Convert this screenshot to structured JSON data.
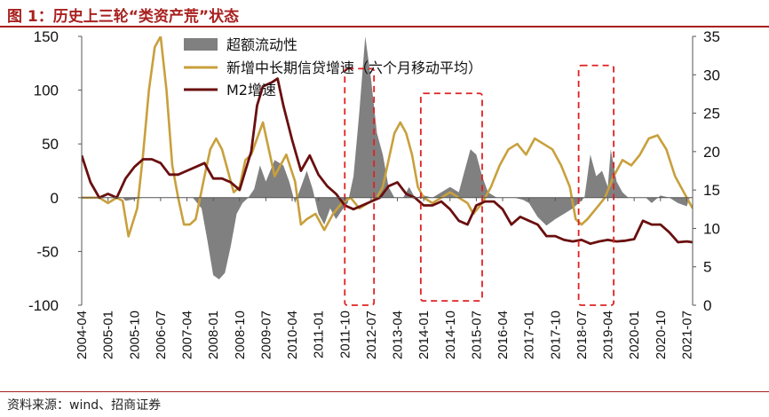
{
  "title": "图 1：历史上三轮“类资产荒”状态",
  "source": "资料来源：wind、招商证券",
  "chart_data": {
    "type": "line",
    "x_ticks": [
      "2004-04",
      "2005-01",
      "2005-10",
      "2006-07",
      "2007-04",
      "2008-01",
      "2008-10",
      "2009-07",
      "2010-04",
      "2011-01",
      "2011-10",
      "2012-07",
      "2013-04",
      "2014-01",
      "2014-10",
      "2015-07",
      "2016-04",
      "2017-01",
      "2017-10",
      "2018-07",
      "2019-04",
      "2020-01",
      "2020-10",
      "2021-07"
    ],
    "x_range": [
      "2004-04",
      "2021-09"
    ],
    "y_left": {
      "range": [
        -100,
        150
      ],
      "ticks": [
        -100,
        -50,
        0,
        50,
        100,
        150
      ]
    },
    "y_right": {
      "range": [
        0,
        35
      ],
      "ticks": [
        0,
        5,
        10,
        15,
        20,
        25,
        30,
        35
      ]
    },
    "grid": false,
    "legend_placement": "top-center",
    "series": [
      {
        "name": "超额流动性",
        "type": "area",
        "axis": "left",
        "color": "#808080",
        "points": [
          [
            "2004-04",
            0
          ],
          [
            "2005-06",
            0
          ],
          [
            "2005-07",
            -3
          ],
          [
            "2006-01",
            0
          ],
          [
            "2007-06",
            0
          ],
          [
            "2007-09",
            -10
          ],
          [
            "2007-11",
            -40
          ],
          [
            "2008-01",
            -72
          ],
          [
            "2008-03",
            -76
          ],
          [
            "2008-05",
            -70
          ],
          [
            "2008-07",
            -45
          ],
          [
            "2008-09",
            -15
          ],
          [
            "2008-11",
            -5
          ],
          [
            "2009-01",
            0
          ],
          [
            "2009-03",
            8
          ],
          [
            "2009-05",
            30
          ],
          [
            "2009-07",
            15
          ],
          [
            "2009-10",
            35
          ],
          [
            "2010-01",
            30
          ],
          [
            "2010-03",
            15
          ],
          [
            "2010-05",
            -5
          ],
          [
            "2010-07",
            10
          ],
          [
            "2010-09",
            25
          ],
          [
            "2010-11",
            8
          ],
          [
            "2011-01",
            -15
          ],
          [
            "2011-03",
            -25
          ],
          [
            "2011-05",
            -10
          ],
          [
            "2011-07",
            -20
          ],
          [
            "2011-09",
            -12
          ],
          [
            "2011-11",
            -5
          ],
          [
            "2012-01",
            20
          ],
          [
            "2012-03",
            80
          ],
          [
            "2012-05",
            150
          ],
          [
            "2012-07",
            110
          ],
          [
            "2012-09",
            60
          ],
          [
            "2012-11",
            40
          ],
          [
            "2013-01",
            10
          ],
          [
            "2013-03",
            0
          ],
          [
            "2013-06",
            0
          ],
          [
            "2013-08",
            10
          ],
          [
            "2013-10",
            0
          ],
          [
            "2014-01",
            2
          ],
          [
            "2014-04",
            0
          ],
          [
            "2014-07",
            5
          ],
          [
            "2014-10",
            10
          ],
          [
            "2015-01",
            5
          ],
          [
            "2015-03",
            25
          ],
          [
            "2015-05",
            45
          ],
          [
            "2015-07",
            40
          ],
          [
            "2015-09",
            20
          ],
          [
            "2015-11",
            5
          ],
          [
            "2016-02",
            0
          ],
          [
            "2016-08",
            0
          ],
          [
            "2016-11",
            -2
          ],
          [
            "2017-01",
            -5
          ],
          [
            "2017-04",
            -18
          ],
          [
            "2017-07",
            -26
          ],
          [
            "2017-10",
            -20
          ],
          [
            "2018-01",
            -15
          ],
          [
            "2018-04",
            -10
          ],
          [
            "2018-06",
            -5
          ],
          [
            "2018-08",
            0
          ],
          [
            "2018-10",
            40
          ],
          [
            "2018-12",
            20
          ],
          [
            "2019-02",
            25
          ],
          [
            "2019-04",
            10
          ],
          [
            "2019-05",
            45
          ],
          [
            "2019-07",
            15
          ],
          [
            "2019-09",
            5
          ],
          [
            "2019-11",
            0
          ],
          [
            "2020-02",
            0
          ],
          [
            "2020-05",
            0
          ],
          [
            "2020-07",
            -5
          ],
          [
            "2020-10",
            2
          ],
          [
            "2021-01",
            0
          ],
          [
            "2021-04",
            -5
          ],
          [
            "2021-07",
            -8
          ],
          [
            "2021-08",
            0
          ]
        ]
      },
      {
        "name": "新增中长期信贷增速（六个月移动平均）",
        "type": "line",
        "axis": "left",
        "color": "#c8a03c",
        "points": [
          [
            "2004-04",
            0
          ],
          [
            "2004-10",
            0
          ],
          [
            "2005-01",
            -5
          ],
          [
            "2005-04",
            0
          ],
          [
            "2005-06",
            -3
          ],
          [
            "2005-08",
            -36
          ],
          [
            "2005-11",
            -10
          ],
          [
            "2006-01",
            40
          ],
          [
            "2006-03",
            100
          ],
          [
            "2006-05",
            140
          ],
          [
            "2006-07",
            150
          ],
          [
            "2006-09",
            100
          ],
          [
            "2006-11",
            30
          ],
          [
            "2007-01",
            0
          ],
          [
            "2007-03",
            -25
          ],
          [
            "2007-05",
            -25
          ],
          [
            "2007-07",
            -20
          ],
          [
            "2007-10",
            20
          ],
          [
            "2007-12",
            45
          ],
          [
            "2008-02",
            55
          ],
          [
            "2008-04",
            45
          ],
          [
            "2008-06",
            25
          ],
          [
            "2008-08",
            5
          ],
          [
            "2008-10",
            10
          ],
          [
            "2008-12",
            35
          ],
          [
            "2009-02",
            40
          ],
          [
            "2009-04",
            55
          ],
          [
            "2009-06",
            70
          ],
          [
            "2009-08",
            45
          ],
          [
            "2009-10",
            20
          ],
          [
            "2009-12",
            30
          ],
          [
            "2010-02",
            40
          ],
          [
            "2010-05",
            15
          ],
          [
            "2010-07",
            -25
          ],
          [
            "2010-09",
            -20
          ],
          [
            "2010-12",
            -15
          ],
          [
            "2011-03",
            -30
          ],
          [
            "2011-06",
            -15
          ],
          [
            "2011-09",
            -5
          ],
          [
            "2011-12",
            0
          ],
          [
            "2012-03",
            -10
          ],
          [
            "2012-06",
            -5
          ],
          [
            "2012-09",
            0
          ],
          [
            "2012-11",
            10
          ],
          [
            "2013-01",
            35
          ],
          [
            "2013-03",
            60
          ],
          [
            "2013-05",
            70
          ],
          [
            "2013-07",
            60
          ],
          [
            "2013-09",
            40
          ],
          [
            "2013-11",
            10
          ],
          [
            "2014-01",
            0
          ],
          [
            "2014-04",
            -5
          ],
          [
            "2014-07",
            0
          ],
          [
            "2014-10",
            5
          ],
          [
            "2015-01",
            0
          ],
          [
            "2015-04",
            -5
          ],
          [
            "2015-06",
            -15
          ],
          [
            "2015-09",
            -5
          ],
          [
            "2015-12",
            10
          ],
          [
            "2016-03",
            30
          ],
          [
            "2016-06",
            45
          ],
          [
            "2016-09",
            50
          ],
          [
            "2016-12",
            40
          ],
          [
            "2017-03",
            55
          ],
          [
            "2017-06",
            50
          ],
          [
            "2017-09",
            45
          ],
          [
            "2017-12",
            30
          ],
          [
            "2018-03",
            10
          ],
          [
            "2018-05",
            -20
          ],
          [
            "2018-07",
            -25
          ],
          [
            "2018-09",
            -20
          ],
          [
            "2018-12",
            -10
          ],
          [
            "2019-03",
            0
          ],
          [
            "2019-06",
            20
          ],
          [
            "2019-09",
            35
          ],
          [
            "2019-12",
            30
          ],
          [
            "2020-03",
            40
          ],
          [
            "2020-06",
            55
          ],
          [
            "2020-09",
            58
          ],
          [
            "2020-12",
            45
          ],
          [
            "2021-03",
            20
          ],
          [
            "2021-06",
            5
          ],
          [
            "2021-09",
            -10
          ]
        ]
      },
      {
        "name": "M2增速",
        "type": "line",
        "axis": "right",
        "color": "#6a0f0f",
        "points": [
          [
            "2004-04",
            19.5
          ],
          [
            "2004-07",
            16
          ],
          [
            "2004-10",
            14
          ],
          [
            "2005-01",
            14.5
          ],
          [
            "2005-04",
            14
          ],
          [
            "2005-07",
            16.5
          ],
          [
            "2005-10",
            18
          ],
          [
            "2006-01",
            19
          ],
          [
            "2006-04",
            19
          ],
          [
            "2006-07",
            18.5
          ],
          [
            "2006-10",
            17
          ],
          [
            "2007-01",
            17
          ],
          [
            "2007-04",
            17.5
          ],
          [
            "2007-07",
            18
          ],
          [
            "2007-10",
            18.5
          ],
          [
            "2008-01",
            16.5
          ],
          [
            "2008-04",
            16.5
          ],
          [
            "2008-07",
            16
          ],
          [
            "2008-10",
            15
          ],
          [
            "2008-12",
            17.5
          ],
          [
            "2009-02",
            20
          ],
          [
            "2009-04",
            26
          ],
          [
            "2009-06",
            28.5
          ],
          [
            "2009-09",
            29
          ],
          [
            "2009-11",
            29.5
          ],
          [
            "2010-01",
            26
          ],
          [
            "2010-04",
            21.5
          ],
          [
            "2010-07",
            17.5
          ],
          [
            "2010-10",
            19.5
          ],
          [
            "2011-01",
            17
          ],
          [
            "2011-04",
            15.5
          ],
          [
            "2011-07",
            14.5
          ],
          [
            "2011-10",
            13
          ],
          [
            "2012-01",
            12.5
          ],
          [
            "2012-04",
            13
          ],
          [
            "2012-07",
            13.5
          ],
          [
            "2012-10",
            14
          ],
          [
            "2013-01",
            15.5
          ],
          [
            "2013-04",
            16
          ],
          [
            "2013-07",
            14.5
          ],
          [
            "2013-10",
            14
          ],
          [
            "2014-01",
            13
          ],
          [
            "2014-04",
            13
          ],
          [
            "2014-07",
            13.5
          ],
          [
            "2014-10",
            12.5
          ],
          [
            "2015-01",
            11
          ],
          [
            "2015-04",
            10.5
          ],
          [
            "2015-07",
            13
          ],
          [
            "2015-10",
            13.5
          ],
          [
            "2016-01",
            13.5
          ],
          [
            "2016-04",
            12.5
          ],
          [
            "2016-07",
            10.5
          ],
          [
            "2016-10",
            11.5
          ],
          [
            "2017-01",
            11
          ],
          [
            "2017-04",
            10.5
          ],
          [
            "2017-07",
            9
          ],
          [
            "2017-10",
            9
          ],
          [
            "2018-01",
            8.5
          ],
          [
            "2018-04",
            8.3
          ],
          [
            "2018-07",
            8.5
          ],
          [
            "2018-10",
            8
          ],
          [
            "2019-01",
            8.3
          ],
          [
            "2019-04",
            8.5
          ],
          [
            "2019-07",
            8.3
          ],
          [
            "2019-10",
            8.4
          ],
          [
            "2020-01",
            8.6
          ],
          [
            "2020-04",
            11
          ],
          [
            "2020-07",
            10.5
          ],
          [
            "2020-10",
            10.5
          ],
          [
            "2021-01",
            9.5
          ],
          [
            "2021-04",
            8.2
          ],
          [
            "2021-07",
            8.3
          ],
          [
            "2021-09",
            8.2
          ]
        ]
      }
    ],
    "annotations": [
      {
        "type": "dashed-box",
        "color": "#e02020",
        "x_from": "2011-10",
        "x_to": "2012-08",
        "y_left_from": -100,
        "y_left_to": 120
      },
      {
        "type": "dashed-box",
        "color": "#e02020",
        "x_from": "2013-12",
        "x_to": "2015-09",
        "y_left_from": -96,
        "y_left_to": 97
      },
      {
        "type": "dashed-box",
        "color": "#e02020",
        "x_from": "2018-06",
        "x_to": "2019-06",
        "y_left_from": -100,
        "y_left_to": 123
      }
    ]
  }
}
